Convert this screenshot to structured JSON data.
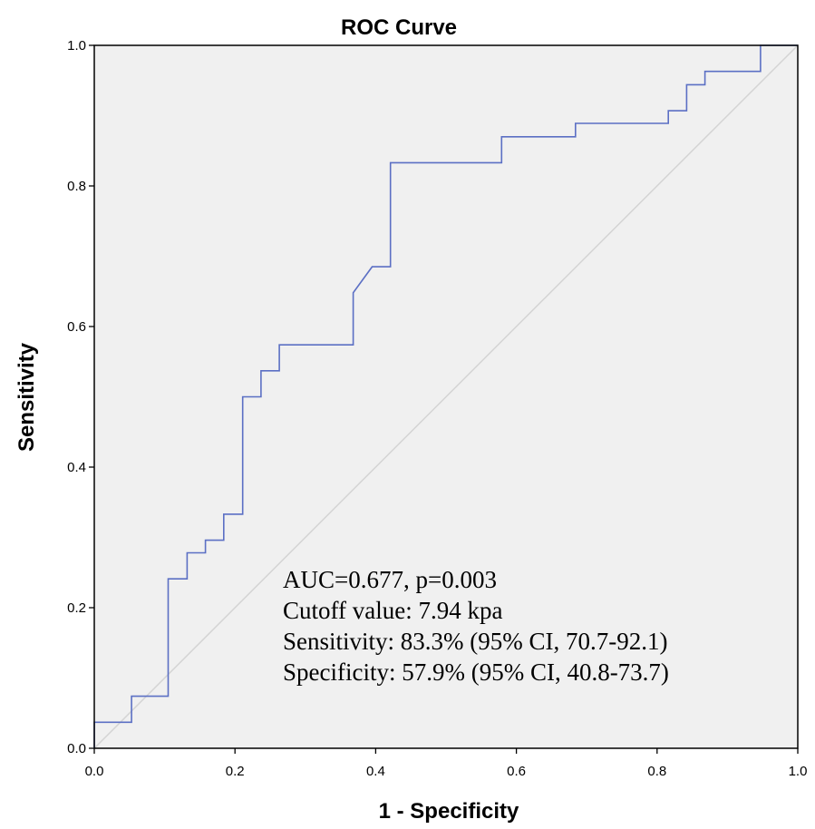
{
  "chart_data": {
    "type": "line",
    "title": "ROC Curve",
    "xlabel": "1 - Specificity",
    "ylabel": "Sensitivity",
    "xlim": [
      0.0,
      1.0
    ],
    "ylim": [
      0.0,
      1.0
    ],
    "x_ticks": [
      "0.0",
      "0.2",
      "0.4",
      "0.6",
      "0.8",
      "1.0"
    ],
    "y_ticks": [
      "0.0",
      "0.2",
      "0.4",
      "0.6",
      "0.8",
      "1.0"
    ],
    "grid": false,
    "series": [
      {
        "x": [
          0.0,
          0.0,
          0.053,
          0.053,
          0.105,
          0.105,
          0.132,
          0.132,
          0.158,
          0.158,
          0.184,
          0.184,
          0.211,
          0.211,
          0.237,
          0.237,
          0.263,
          0.263,
          0.368,
          0.368,
          0.395,
          0.395,
          0.421,
          0.421,
          0.579,
          0.579,
          0.684,
          0.684,
          0.816,
          0.816,
          0.842,
          0.842,
          0.868,
          0.868,
          0.947,
          0.947,
          1.0
        ],
        "y": [
          0.0,
          0.037,
          0.037,
          0.074,
          0.074,
          0.241,
          0.241,
          0.278,
          0.278,
          0.296,
          0.296,
          0.333,
          0.333,
          0.5,
          0.5,
          0.537,
          0.537,
          0.574,
          0.574,
          0.648,
          0.685,
          0.685,
          0.685,
          0.833,
          0.833,
          0.87,
          0.87,
          0.889,
          0.889,
          0.907,
          0.907,
          0.944,
          0.944,
          0.963,
          0.963,
          1.0,
          1.0
        ],
        "color": "#5b6fc4"
      }
    ],
    "reference_line": {
      "x": [
        0.0,
        1.0
      ],
      "y": [
        0.0,
        1.0
      ],
      "color": "#d4d4d4"
    },
    "annotations": [
      "AUC=0.677, p=0.003",
      "Cutoff value: 7.94 kpa",
      "Sensitivity: 83.3% (95% CI, 70.7-92.1)",
      "Specificity: 57.9% (95% CI, 40.8-73.7)"
    ],
    "colors": {
      "plot_background": "#f0f0f0",
      "frame": "#000000"
    }
  }
}
